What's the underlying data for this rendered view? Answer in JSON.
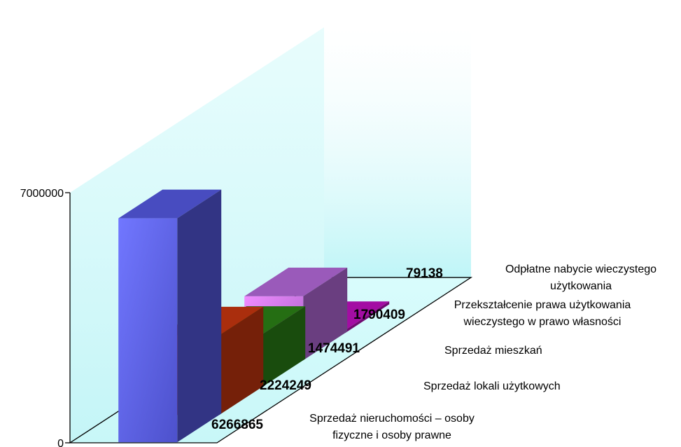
{
  "chart_data": {
    "type": "bar",
    "variant": "3d-column",
    "ylim": [
      0,
      7000000
    ],
    "y_ticks": [
      "0",
      "7000000"
    ],
    "grid": false,
    "categories": [
      [
        "Sprzedaż nieruchomości – osoby",
        "fizyczne i osoby prawne"
      ],
      [
        "Sprzedaż lokali użytkowych"
      ],
      [
        "Sprzedaż mieszkań"
      ],
      [
        "Przekształcenie prawa użytkowania",
        "wieczystego w prawo własności"
      ],
      [
        "Odpłatne nabycie wieczystego",
        "użytkowania"
      ]
    ],
    "values": [
      6266865,
      2224249,
      1474491,
      1790409,
      79138
    ],
    "value_labels": [
      "6266865",
      "2224249",
      "1474491",
      "1790409",
      "79138"
    ],
    "colors": [
      "#5a5ff0",
      "#d43a10",
      "#2e8a18",
      "#c070e8",
      "#cc10cc"
    ],
    "wall_color": "#cdfafa"
  }
}
